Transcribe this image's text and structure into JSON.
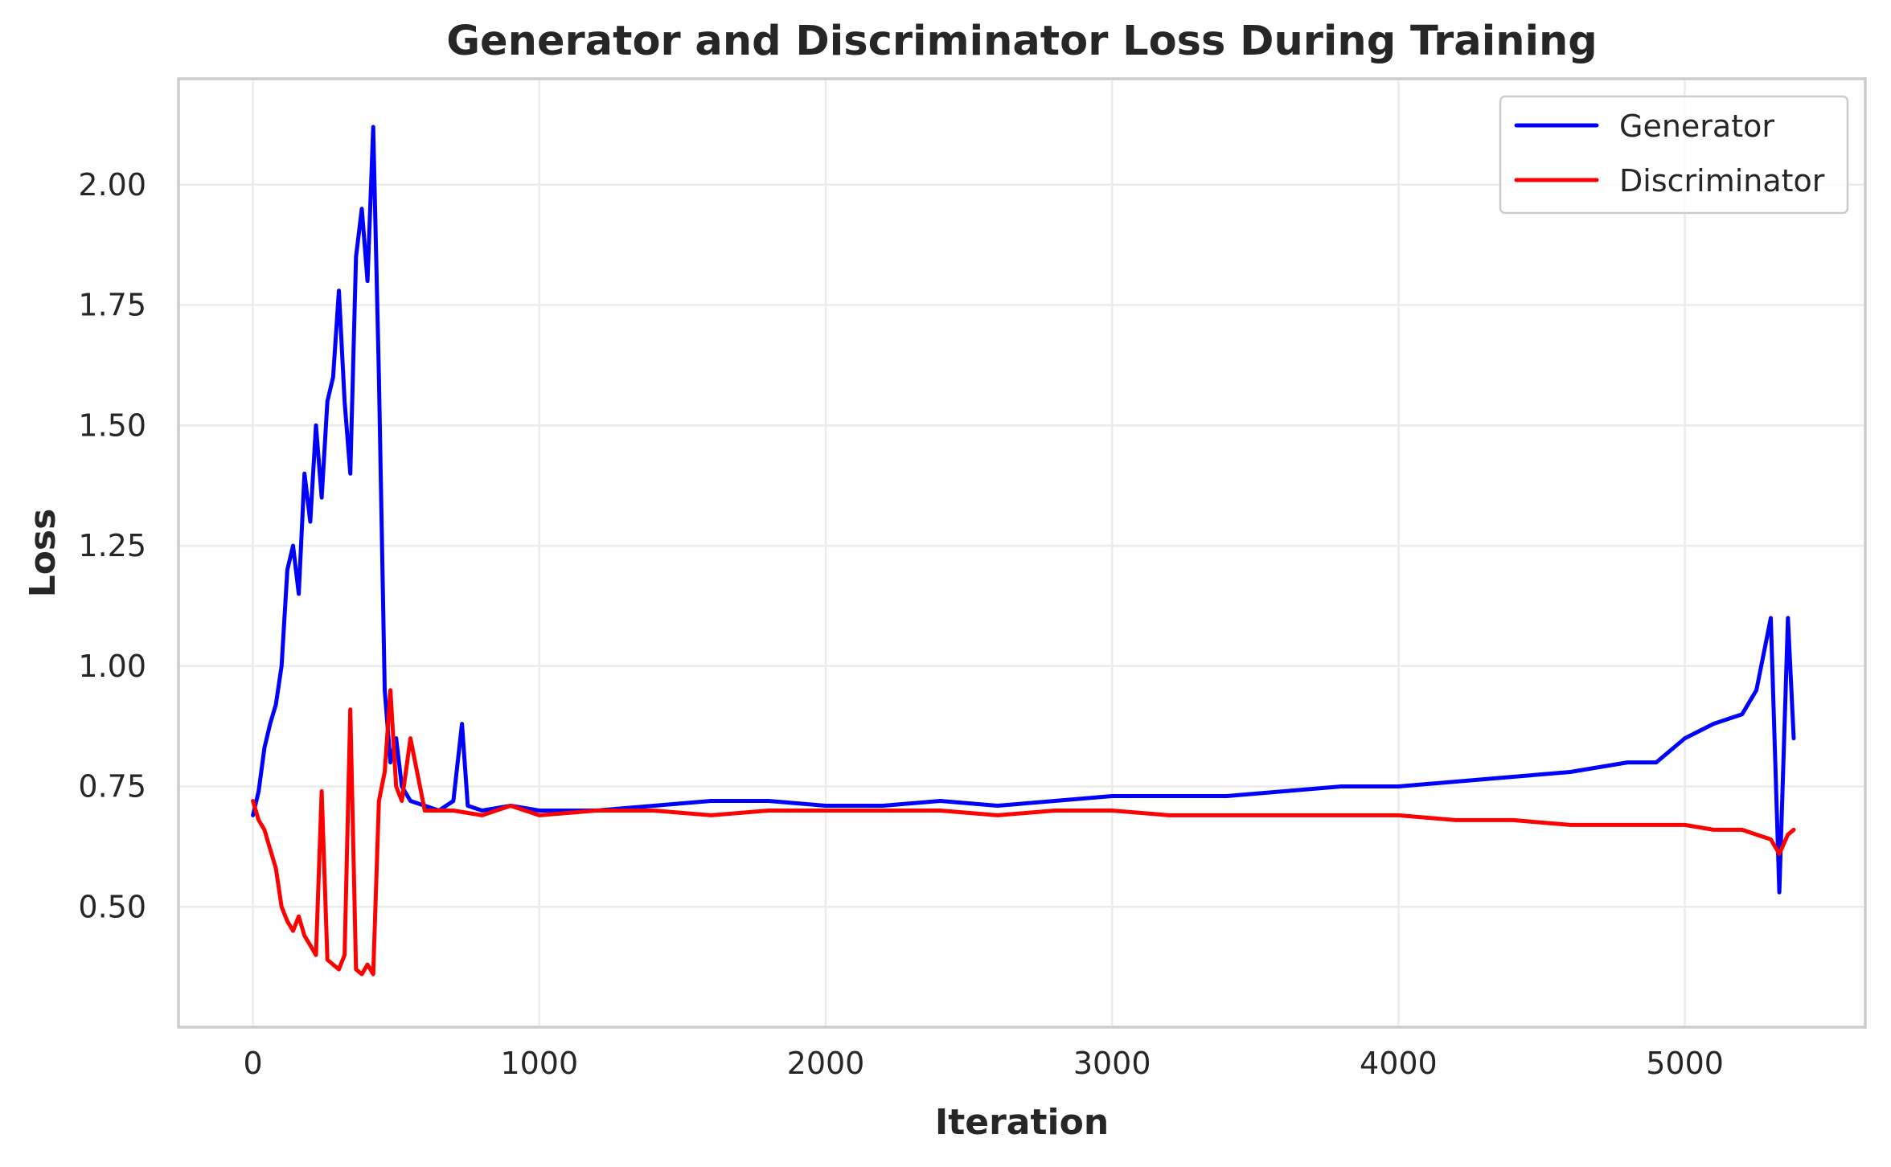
{
  "chart_data": {
    "type": "line",
    "title": "Generator and Discriminator Loss During Training",
    "xlabel": "Iteration",
    "ylabel": "Loss",
    "xlim": [
      -260,
      5630
    ],
    "ylim": [
      0.25,
      2.22
    ],
    "xticks": [
      0,
      1000,
      2000,
      3000,
      4000,
      5000
    ],
    "xtick_labels": [
      "0",
      "1000",
      "2000",
      "3000",
      "4000",
      "5000"
    ],
    "yticks": [
      0.5,
      0.75,
      1.0,
      1.25,
      1.5,
      1.75,
      2.0
    ],
    "ytick_labels": [
      "0.50",
      "0.75",
      "1.00",
      "1.25",
      "1.50",
      "1.75",
      "2.00"
    ],
    "grid": true,
    "legend_position": "top-right",
    "series": [
      {
        "name": "Generator",
        "color": "#0000ff",
        "x": [
          0,
          20,
          40,
          60,
          80,
          100,
          120,
          140,
          160,
          180,
          200,
          220,
          240,
          260,
          280,
          300,
          320,
          340,
          360,
          380,
          400,
          420,
          440,
          460,
          480,
          500,
          520,
          550,
          600,
          650,
          700,
          730,
          750,
          800,
          900,
          1000,
          1200,
          1400,
          1600,
          1800,
          2000,
          2200,
          2400,
          2600,
          2800,
          3000,
          3200,
          3400,
          3600,
          3800,
          4000,
          4200,
          4400,
          4600,
          4800,
          4900,
          5000,
          5100,
          5200,
          5250,
          5300,
          5330,
          5360,
          5380
        ],
        "values": [
          0.69,
          0.74,
          0.83,
          0.88,
          0.92,
          1.0,
          1.2,
          1.25,
          1.15,
          1.4,
          1.3,
          1.5,
          1.35,
          1.55,
          1.6,
          1.78,
          1.55,
          1.4,
          1.85,
          1.95,
          1.8,
          2.12,
          1.6,
          0.95,
          0.8,
          0.85,
          0.75,
          0.72,
          0.71,
          0.7,
          0.72,
          0.88,
          0.71,
          0.7,
          0.71,
          0.7,
          0.7,
          0.71,
          0.72,
          0.72,
          0.71,
          0.71,
          0.72,
          0.71,
          0.72,
          0.73,
          0.73,
          0.73,
          0.74,
          0.75,
          0.75,
          0.76,
          0.77,
          0.78,
          0.8,
          0.8,
          0.85,
          0.88,
          0.9,
          0.95,
          1.1,
          0.53,
          1.1,
          0.85
        ]
      },
      {
        "name": "Discriminator",
        "color": "#ff0000",
        "x": [
          0,
          20,
          40,
          60,
          80,
          100,
          120,
          140,
          160,
          180,
          200,
          220,
          240,
          260,
          280,
          300,
          320,
          340,
          360,
          380,
          400,
          420,
          440,
          460,
          480,
          500,
          520,
          550,
          600,
          700,
          800,
          900,
          1000,
          1200,
          1400,
          1600,
          1800,
          2000,
          2200,
          2400,
          2600,
          2800,
          3000,
          3200,
          3400,
          3600,
          3800,
          4000,
          4200,
          4400,
          4600,
          4800,
          5000,
          5100,
          5200,
          5250,
          5300,
          5330,
          5360,
          5380
        ],
        "values": [
          0.72,
          0.68,
          0.66,
          0.62,
          0.58,
          0.5,
          0.47,
          0.45,
          0.48,
          0.44,
          0.42,
          0.4,
          0.74,
          0.39,
          0.38,
          0.37,
          0.4,
          0.91,
          0.37,
          0.36,
          0.38,
          0.36,
          0.72,
          0.78,
          0.95,
          0.75,
          0.72,
          0.85,
          0.7,
          0.7,
          0.69,
          0.71,
          0.69,
          0.7,
          0.7,
          0.69,
          0.7,
          0.7,
          0.7,
          0.7,
          0.69,
          0.7,
          0.7,
          0.69,
          0.69,
          0.69,
          0.69,
          0.69,
          0.68,
          0.68,
          0.67,
          0.67,
          0.67,
          0.66,
          0.66,
          0.65,
          0.64,
          0.61,
          0.65,
          0.66
        ]
      }
    ]
  }
}
